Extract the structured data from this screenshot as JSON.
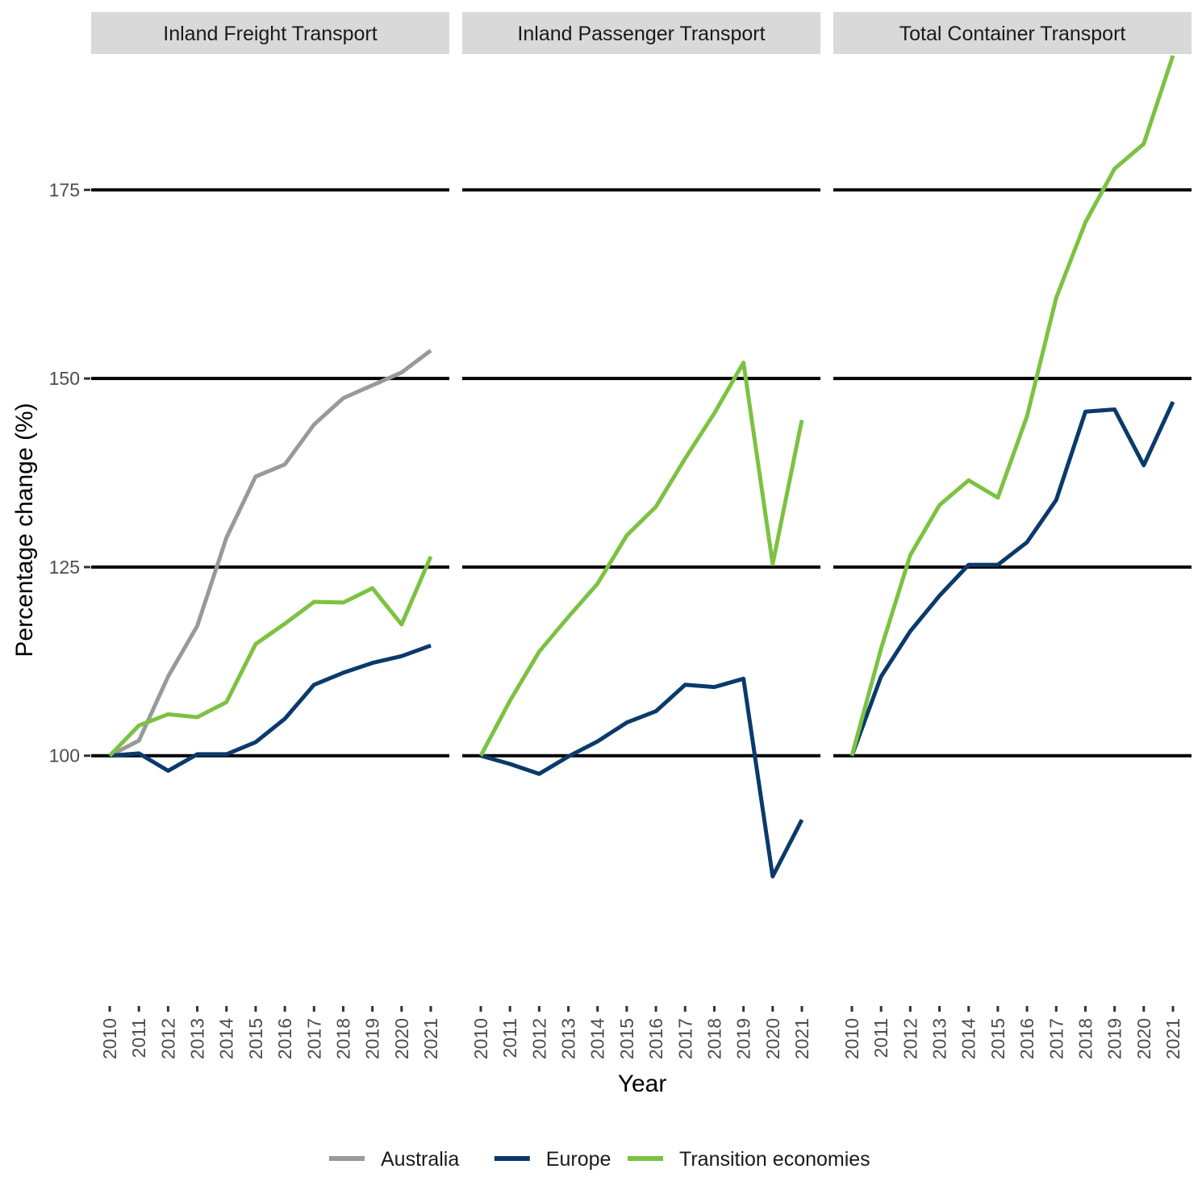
{
  "chart_data": {
    "type": "line",
    "xlabel": "Year",
    "ylabel": "Percentage change (%)",
    "ylim": [
      68,
      193
    ],
    "y_ticks": [
      100,
      125,
      150,
      175
    ],
    "x": [
      "2010",
      "2011",
      "2012",
      "2013",
      "2014",
      "2015",
      "2016",
      "2017",
      "2018",
      "2019",
      "2020",
      "2021"
    ],
    "grid": "major horizontal lines only",
    "legend_position": "bottom",
    "legend": [
      {
        "name": "Australia",
        "color": "#999999"
      },
      {
        "name": "Europe",
        "color": "#0a3a6b"
      },
      {
        "name": "Transition economies",
        "color": "#7cc242"
      }
    ],
    "panels": [
      {
        "title": "Inland Freight Transport",
        "series": [
          {
            "name": "Australia",
            "color": "#999999",
            "values": [
              100,
              102,
              110.5,
              117.2,
              128.9,
              137,
              138.6,
              143.9,
              147.4,
              149.1,
              150.8,
              153.7
            ]
          },
          {
            "name": "Europe",
            "color": "#0a3a6b",
            "values": [
              100,
              100.3,
              98,
              100.2,
              100.2,
              101.8,
              104.9,
              109.4,
              111,
              112.3,
              113.2,
              114.6
            ]
          },
          {
            "name": "Transition economies",
            "color": "#7cc242",
            "values": [
              100,
              104,
              105.5,
              105.1,
              107.1,
              114.8,
              117.5,
              120.4,
              120.3,
              122.2,
              117.4,
              126.4
            ]
          }
        ]
      },
      {
        "title": "Inland Passenger Transport",
        "series": [
          {
            "name": "Europe",
            "color": "#0a3a6b",
            "values": [
              100,
              98.9,
              97.6,
              99.9,
              101.9,
              104.4,
              105.9,
              109.4,
              109.1,
              110.2,
              84,
              91.5
            ]
          },
          {
            "name": "Transition economies",
            "color": "#7cc242",
            "values": [
              100,
              107.3,
              113.8,
              118.4,
              122.8,
              129.2,
              133,
              139.4,
              145.4,
              152.1,
              125.4,
              144.5
            ]
          }
        ]
      },
      {
        "title": "Total Container Transport",
        "series": [
          {
            "name": "Europe",
            "color": "#0a3a6b",
            "values": [
              100,
              110.5,
              116.5,
              121.2,
              125.3,
              125.3,
              128.3,
              133.9,
              145.6,
              145.9,
              138.5,
              146.9
            ]
          },
          {
            "name": "Transition economies",
            "color": "#7cc242",
            "values": [
              100,
              114.2,
              126.6,
              133.2,
              136.5,
              134.2,
              145,
              160.7,
              170.7,
              177.8,
              181.1,
              192.8
            ]
          }
        ]
      }
    ]
  }
}
